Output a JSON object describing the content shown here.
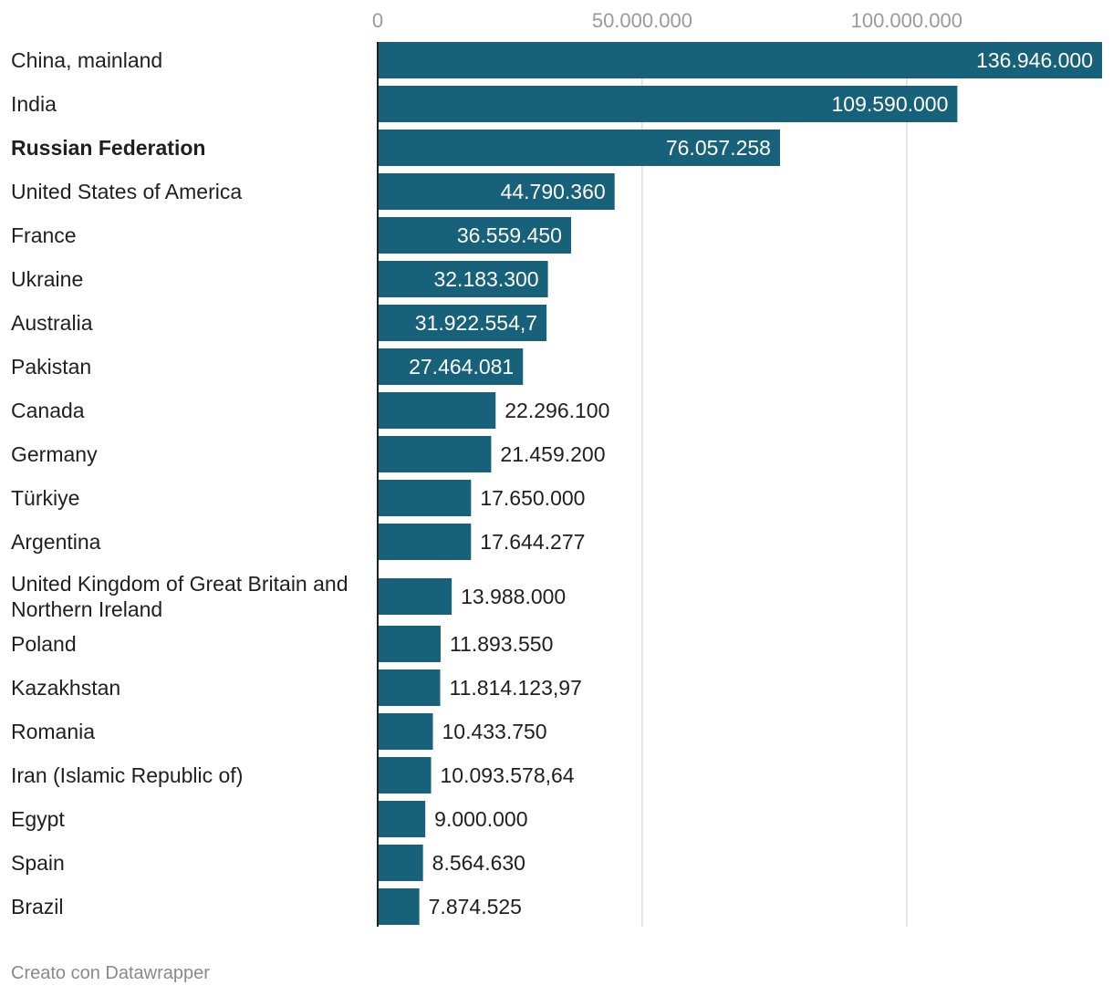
{
  "chart_data": {
    "type": "bar",
    "orientation": "horizontal",
    "categories": [
      "China, mainland",
      "India",
      "Russian Federation",
      "United States of America",
      "France",
      "Ukraine",
      "Australia",
      "Pakistan",
      "Canada",
      "Germany",
      "Türkiye",
      "Argentina",
      "United Kingdom of Great Britain and Northern Ireland",
      "Poland",
      "Kazakhstan",
      "Romania",
      "Iran (Islamic Republic of)",
      "Egypt",
      "Spain",
      "Brazil"
    ],
    "values": [
      136946000,
      109590000,
      76057258,
      44790360,
      36559450,
      32183300,
      31922554.7,
      27464081,
      22296100,
      21459200,
      17650000,
      17644277,
      13988000,
      11893550,
      11814123.97,
      10433750,
      10093578.64,
      9000000,
      8564630,
      7874525
    ],
    "value_labels": [
      "136.946.000",
      "109.590.000",
      "76.057.258",
      "44.790.360",
      "36.559.450",
      "32.183.300",
      "31.922.554,7",
      "27.464.081",
      "22.296.100",
      "21.459.200",
      "17.650.000",
      "17.644.277",
      "13.988.000",
      "11.893.550",
      "11.814.123,97",
      "10.433.750",
      "10.093.578,64",
      "9.000.000",
      "8.564.630",
      "7.874.525"
    ],
    "highlighted": [
      "Russian Federation"
    ],
    "xticks": [
      0,
      50000000,
      100000000
    ],
    "xtick_labels": [
      "0",
      "50.000.000",
      "100.000.000"
    ],
    "xlim": [
      0,
      136946000
    ],
    "grid": true,
    "title": "",
    "xlabel": "",
    "ylabel": ""
  },
  "colors": {
    "bar": "#17627a",
    "label_inside": "#ffffff",
    "label_outside": "#1f1f1f",
    "grid": "#dddddd",
    "axis": "#222222"
  },
  "footer": {
    "credit": "Creato con Datawrapper"
  }
}
